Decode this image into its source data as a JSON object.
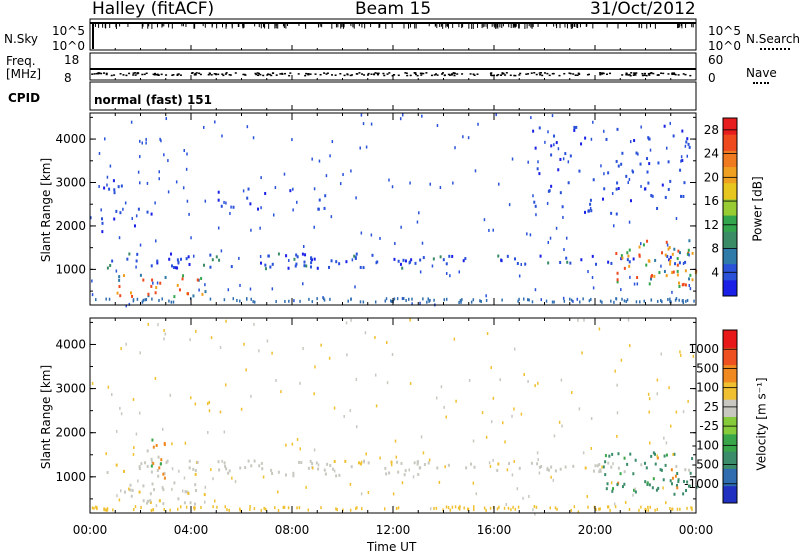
{
  "header": {
    "station": "Halley (fitACF)",
    "beam": "Beam 15",
    "date": "31/Oct/2012"
  },
  "top_panels": {
    "nsky_label": "N.Sky",
    "nsky_ticks": [
      "10^5",
      "10^0"
    ],
    "nsearch_label": "N.Search",
    "nsearch_ticks": [
      "10^5",
      "10^0"
    ],
    "freq_label": "Freq.",
    "freq_unit": "[MHz]",
    "freq_ticks": [
      "18",
      "8"
    ],
    "nave_label": "Nave",
    "nave_ticks": [
      "60",
      "0"
    ],
    "cpid_label": "CPID",
    "cpid_value": "normal (fast) 151"
  },
  "chart_data": [
    {
      "type": "heatmap",
      "panel": "power",
      "ylabel": "Slant Range [km]",
      "xlabel": "Time UT",
      "xticks": [
        "00:00",
        "04:00",
        "08:00",
        "12:00",
        "16:00",
        "20:00",
        "00:00"
      ],
      "yticks": [
        "1000",
        "2000",
        "3000",
        "4000"
      ],
      "xlim_hours": [
        0,
        24
      ],
      "ylim_km": [
        180,
        4600
      ],
      "colorbar": {
        "label": "Power [dB]",
        "ticks": [
          "4",
          "8",
          "12",
          "16",
          "20",
          "24",
          "28"
        ],
        "range": [
          0,
          30
        ],
        "colors": [
          "#1a20e6",
          "#2952d9",
          "#2e7aa8",
          "#3a8c66",
          "#33a64d",
          "#99cc33",
          "#e6c61f",
          "#f0a020",
          "#f07a20",
          "#ef4a1e",
          "#e81e1e"
        ]
      },
      "echo_regions": [
        {
          "t": [
            0.6,
            5.0
          ],
          "r": [
            1050,
            1400
          ],
          "level": "low"
        },
        {
          "t": [
            5.0,
            13.5
          ],
          "r": [
            1050,
            1400
          ],
          "level": "low"
        },
        {
          "t": [
            13.5,
            23.9
          ],
          "r": [
            1150,
            1350
          ],
          "level": "low"
        },
        {
          "t": [
            1.0,
            4.6
          ],
          "r": [
            400,
            900
          ],
          "level": "high"
        },
        {
          "t": [
            20.8,
            24.0
          ],
          "r": [
            600,
            1700
          ],
          "level": "high"
        },
        {
          "t": [
            0.2,
            2.5
          ],
          "r": [
            1900,
            3100
          ],
          "level": "sparse"
        },
        {
          "t": [
            5.0,
            9.5
          ],
          "r": [
            2400,
            2900
          ],
          "level": "sparse"
        },
        {
          "t": [
            17.5,
            23.8
          ],
          "r": [
            2300,
            4400
          ],
          "level": "sparse"
        }
      ]
    },
    {
      "type": "heatmap",
      "panel": "velocity",
      "ylabel": "Slant Range [km]",
      "xlabel": "Time UT",
      "xticks": [
        "00:00",
        "04:00",
        "08:00",
        "12:00",
        "16:00",
        "20:00",
        "00:00"
      ],
      "yticks": [
        "1000",
        "2000",
        "3000",
        "4000"
      ],
      "xlim_hours": [
        0,
        24
      ],
      "ylim_km": [
        180,
        4600
      ],
      "colorbar": {
        "label": "Velocity [m s⁻¹]",
        "ticks": [
          "1000",
          "500",
          "100",
          "25",
          "-25",
          "-100",
          "-500",
          "-1000"
        ],
        "colors": [
          "#2030c0",
          "#2f6db0",
          "#3a8c6a",
          "#3aa64a",
          "#86cc3a",
          "#c8c8c0",
          "#f0c030",
          "#f08a20",
          "#ee5020",
          "#e81818"
        ]
      },
      "echo_regions": [
        {
          "t": [
            0.6,
            13.5
          ],
          "r": [
            1050,
            1400
          ],
          "level": "ground"
        },
        {
          "t": [
            13.5,
            23.9
          ],
          "r": [
            1150,
            1350
          ],
          "level": "ground"
        },
        {
          "t": [
            1.0,
            4.6
          ],
          "r": [
            400,
            900
          ],
          "level": "ground"
        },
        {
          "t": [
            20.3,
            24.0
          ],
          "r": [
            600,
            1600
          ],
          "level": "green"
        },
        {
          "t": [
            2.2,
            3.4
          ],
          "r": [
            1000,
            1900
          ],
          "level": "mixed"
        }
      ]
    }
  ]
}
